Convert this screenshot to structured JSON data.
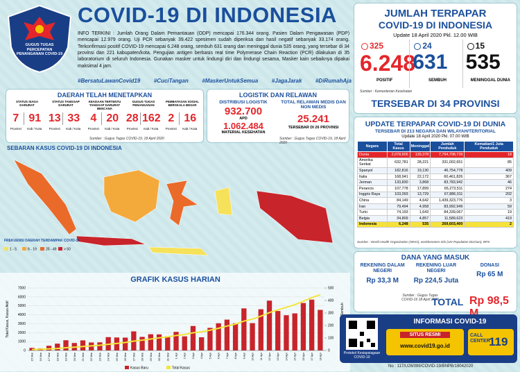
{
  "header": {
    "logo_text": "GUGUS TUGAS PERCEPATAN PENANGANAN COVID-19",
    "title": "COVID-19 DI INDONESIA",
    "info": "INFO TERKINI : Jumlah Orang Dalam Pemantauan (ODP) mencapai 176.344 orang. Pasien Dalam Pengawasan (PDP) mencapai 12.979 orang. Uji PCR sebanyak 39.422 spesimen sudah diperiksa dan hasil negatif sebanyak 33.174 orang. Terkonfirmasi positif COVID-19 mencapai 6.248 orang, sembuh 631 orang dan meninggal dunia 535 orang, yang tersebar di 34 provinsi dan 221 kabupaten/kota. Pengujian antigen berbasis real time Polymerase Chain Reaction (PCR) dilakukan di 35 laboratorium di seluruh Indonesia. Gunakan masker untuk lindungi diri dan lindungi sesama, Masker kain sebaiknya dipakai maksimal 4 jam.",
    "hashtags": [
      "#BersatuLawanCovid19",
      "#CuciTangan",
      "#MaskerUntukSemua",
      "#JagaJarak",
      "#DiRumahAja"
    ]
  },
  "indonesia": {
    "title": "JUMLAH TERPAPAR",
    "subtitle": "COVID-19 DI INDONESIA",
    "update": "Update 18 April 2020 Pkl. 12.00 WIB",
    "stats": [
      {
        "increase": "325",
        "value": "6.248",
        "label": "POSITIF",
        "color": "#e3262b"
      },
      {
        "increase": "24",
        "value": "631",
        "label": "SEMBUH",
        "color": "#1a4f9c"
      },
      {
        "increase": "15",
        "value": "535",
        "label": "MENINGGAL DUNIA",
        "color": "#111111"
      }
    ],
    "source": "Sumber : Kementerian Kesehatan",
    "provinces": "TERSEBAR DI 34 PROVINSI"
  },
  "regions": {
    "title": "DAERAH TELAH MENETAPKAN",
    "unit_a": "Provinsi",
    "unit_b": "Kab / Kota",
    "items": [
      {
        "label": "STATUS SIAGA DARURAT",
        "a": "7",
        "b": "91"
      },
      {
        "label": "STATUS TANGGAP DARURAT",
        "a": "13",
        "b": "33"
      },
      {
        "label": "KEADAAN TERTENTU TANGGAP DARURAT BENCANA",
        "a": "4",
        "b": "20"
      },
      {
        "label": "GUGUS TUGAS PENANGANAN",
        "a": "28",
        "b": "162"
      },
      {
        "label": "PEMBATASAN SOSIAL BERSKALA BESAR",
        "a": "2",
        "b": "16"
      }
    ],
    "source": "Sumber : Gugus Tugas COVID-19, 18 April 2020"
  },
  "logistics": {
    "title": "LOGISTIK DAN RELAWAN",
    "distribution_label": "DISTRIBUSI LOGISTIK",
    "apd_value": "932.700",
    "apd_label": "APD",
    "material_value": "1.062.484",
    "material_label": "MATERIAL KESEHATAN",
    "volunteer_label": "TOTAL RELAWAN MEDIS DAN NON MEDIS",
    "volunteer_value": "25.241",
    "volunteer_note": "TERSEBAR DI 26 PROVINSI",
    "source": "Sumber : Gugus Tugas COVID-19, 18 April 2020"
  },
  "map": {
    "title": "SEBARAN KASUS COVID-19 DI INDONESIA",
    "legend_title": "FREKUENSI DAERAH TERDAMPAK COVID-19",
    "legend": [
      {
        "label": "1 - 5",
        "color": "#f6e15a"
      },
      {
        "label": "6 - 19",
        "color": "#f4a93b"
      },
      {
        "label": "20 - 49",
        "color": "#ea6a2a"
      },
      {
        "label": "> 50",
        "color": "#c8242b"
      }
    ]
  },
  "daily_chart": {
    "type": "bar",
    "title": "GRAFIK KASUS HARIAN",
    "y_label": "Total Kasus, Kasus Aktif",
    "y2_label": "Kasus Baru, Sembuh",
    "categories": [
      "15 Mar",
      "16 Mar",
      "17 Mar",
      "18 Mar",
      "19 Mar",
      "20 Mar",
      "21 Mar",
      "22 Mar",
      "23 Mar",
      "24 Mar",
      "25 Mar",
      "26 Mar",
      "27 Mar",
      "28 Mar",
      "29 Mar",
      "30 Mar",
      "31 Mar",
      "1 Apr",
      "2 Apr",
      "3 Apr",
      "4 Apr",
      "5 Apr",
      "6 Apr",
      "7 Apr",
      "8 Apr",
      "9 Apr",
      "10 Apr",
      "11 Apr",
      "12 Apr",
      "13 Apr",
      "14 Apr",
      "15 Apr",
      "16 Apr",
      "17 Apr",
      "18 Apr"
    ],
    "series": [
      {
        "name": "Kasus Baru",
        "color": "#c8242b",
        "axis": "y2",
        "values": [
          21,
          17,
          38,
          55,
          82,
          60,
          81,
          64,
          65,
          107,
          104,
          103,
          153,
          109,
          130,
          129,
          114,
          149,
          113,
          196,
          106,
          181,
          218,
          247,
          218,
          337,
          219,
          330,
          399,
          316,
          282,
          297,
          380,
          407,
          325
        ]
      },
      {
        "name": "Total Kasus",
        "color": "#f3e63a",
        "values": [
          117,
          134,
          172,
          227,
          309,
          369,
          450,
          514,
          579,
          686,
          790,
          893,
          1046,
          1155,
          1285,
          1414,
          1528,
          1677,
          1790,
          1986,
          2092,
          2273,
          2491,
          2738,
          2956,
          3293,
          3512,
          3842,
          4241,
          4557,
          4839,
          5136,
          5516,
          5923,
          6248
        ]
      }
    ],
    "ylim": [
      0,
      7000
    ],
    "yticks": [
      0,
      1000,
      2000,
      3000,
      4000,
      5000,
      6000,
      7000
    ],
    "y2lim": [
      0,
      500
    ],
    "y2ticks": [
      0,
      100,
      200,
      300,
      400,
      500
    ],
    "grid": true
  },
  "world": {
    "title": "UPDATE TERPAPAR COVID-19 DI DUNIA",
    "subtitle": "TERSEBAR DI 213 NEGARA DAN WILAYAH/TERITORIAL",
    "update": "Update 18 April 2020 Pkl. 07.00 WIB",
    "table": {
      "header": [
        "Negara",
        "Total Kasus",
        "Meninggal",
        "Jumlah Penduduk",
        "Kematian/1 Juta Penduduk"
      ],
      "rows": [
        [
          "Dunia",
          "2,078,605",
          "139,378",
          "7,794,798,739",
          "18"
        ],
        [
          "Amerika Serikat",
          "632,781",
          "28,221",
          "331,002,651",
          "85"
        ],
        [
          "Spanyol",
          "182,816",
          "19,130",
          "46,754,778",
          "409"
        ],
        [
          "Italia",
          "168,941",
          "22,172",
          "60,461,826",
          "367"
        ],
        [
          "Jerman",
          "133,830",
          "3,868",
          "83,783,942",
          "46"
        ],
        [
          "Perancis",
          "107,778",
          "17,899",
          "65,273,511",
          "274"
        ],
        [
          "Inggris Raya",
          "103,093",
          "13,729",
          "67,886,011",
          "202"
        ],
        [
          "China",
          "84,149",
          "4,642",
          "1,439,323,776",
          "3"
        ],
        [
          "Iran",
          "79,494",
          "4,958",
          "83,992,949",
          "59"
        ],
        [
          "Turki",
          "74,193",
          "1,643",
          "84,339,067",
          "19"
        ],
        [
          "Belgia",
          "34,809",
          "4,857",
          "11,589,623",
          "419"
        ],
        [
          "Indonesia",
          "6,248",
          "535",
          "269,603,400",
          "2"
        ]
      ]
    },
    "source": "Sumber : World Health Organization (WHO), worldometers.info (UN Population Division), BPS"
  },
  "funds": {
    "title": "DANA YANG MASUK",
    "items": [
      {
        "label": "REKENING DALAM NEGERI",
        "value": "Rp 33,3 M"
      },
      {
        "label": "REKENING LUAR NEGERI",
        "value": "Rp 224,5 Juta"
      },
      {
        "label": "DONASI",
        "value": "Rp 65 M"
      }
    ],
    "source": "Sumber : Gugus Tugas COVID-19 18 April 2020",
    "total_label": "TOTAL",
    "total_value": "Rp 98,5 M"
  },
  "info": {
    "title": "INFORMASI COVID-19",
    "qr_caption": "Protokol Kesiapsiagaan COVID-19",
    "site_label": "SITUS RESMI",
    "site": "www.covid19.go.id",
    "call_label": "CALL CENTER",
    "call_number": "119"
  },
  "footer": "No : 117/U26/099/COVID-19/BNPB/18042020"
}
